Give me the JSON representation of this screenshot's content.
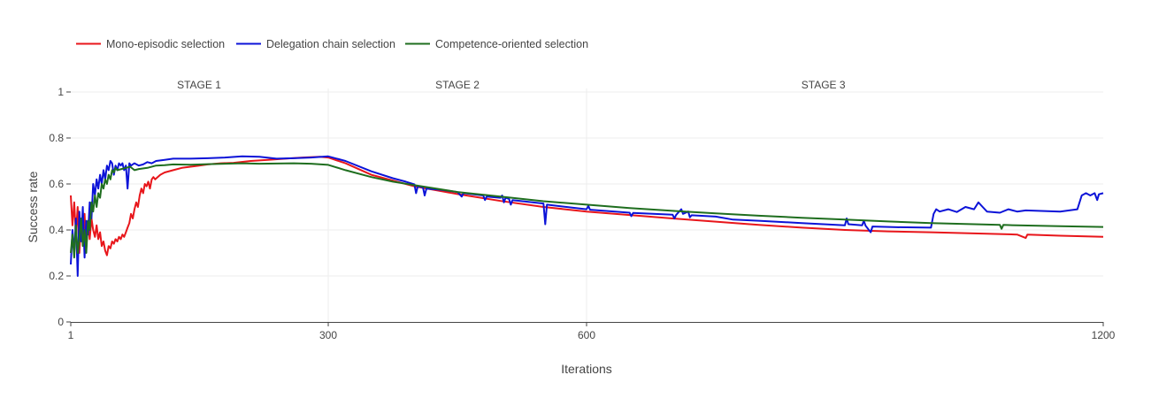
{
  "chart_data": {
    "type": "line",
    "title": "",
    "xlabel": "Iterations",
    "ylabel": "Success rate",
    "xlim": [
      1,
      1200
    ],
    "ylim": [
      0,
      1
    ],
    "x_ticks": [
      1,
      300,
      600,
      1200
    ],
    "y_ticks": [
      0,
      0.2,
      0.4,
      0.6,
      0.8,
      1
    ],
    "y_tick_labels": [
      "0",
      "0.2",
      "0.4",
      "0.6",
      "0.8",
      "1"
    ],
    "x_tick_labels": [
      "1",
      "300",
      "600",
      "1200"
    ],
    "stage_separators": [
      300,
      600
    ],
    "stages": [
      {
        "label": "STAGE 1",
        "x": 150
      },
      {
        "label": "STAGE 2",
        "x": 450
      },
      {
        "label": "STAGE 3",
        "x": 875
      }
    ],
    "grid": true,
    "legend_position": "top-left",
    "series": [
      {
        "name": "Mono-episodic selection",
        "color": "#e8161b",
        "points": [
          [
            1,
            0.55
          ],
          [
            3,
            0.42
          ],
          [
            5,
            0.52
          ],
          [
            7,
            0.38
          ],
          [
            9,
            0.5
          ],
          [
            11,
            0.3
          ],
          [
            13,
            0.44
          ],
          [
            15,
            0.35
          ],
          [
            17,
            0.47
          ],
          [
            19,
            0.32
          ],
          [
            21,
            0.43
          ],
          [
            23,
            0.36
          ],
          [
            25,
            0.45
          ],
          [
            27,
            0.4
          ],
          [
            29,
            0.37
          ],
          [
            31,
            0.42
          ],
          [
            33,
            0.36
          ],
          [
            35,
            0.39
          ],
          [
            37,
            0.33
          ],
          [
            39,
            0.35
          ],
          [
            41,
            0.31
          ],
          [
            43,
            0.29
          ],
          [
            45,
            0.33
          ],
          [
            47,
            0.32
          ],
          [
            49,
            0.35
          ],
          [
            51,
            0.34
          ],
          [
            53,
            0.36
          ],
          [
            55,
            0.35
          ],
          [
            57,
            0.37
          ],
          [
            59,
            0.36
          ],
          [
            61,
            0.38
          ],
          [
            63,
            0.37
          ],
          [
            65,
            0.39
          ],
          [
            67,
            0.41
          ],
          [
            69,
            0.43
          ],
          [
            71,
            0.47
          ],
          [
            73,
            0.45
          ],
          [
            75,
            0.49
          ],
          [
            77,
            0.52
          ],
          [
            79,
            0.5
          ],
          [
            81,
            0.55
          ],
          [
            83,
            0.58
          ],
          [
            85,
            0.56
          ],
          [
            87,
            0.6
          ],
          [
            89,
            0.59
          ],
          [
            91,
            0.61
          ],
          [
            93,
            0.58
          ],
          [
            95,
            0.62
          ],
          [
            97,
            0.63
          ],
          [
            99,
            0.62
          ],
          [
            105,
            0.64
          ],
          [
            110,
            0.65
          ],
          [
            120,
            0.66
          ],
          [
            130,
            0.67
          ],
          [
            140,
            0.675
          ],
          [
            150,
            0.68
          ],
          [
            160,
            0.685
          ],
          [
            175,
            0.69
          ],
          [
            190,
            0.692
          ],
          [
            210,
            0.7
          ],
          [
            230,
            0.705
          ],
          [
            250,
            0.71
          ],
          [
            270,
            0.715
          ],
          [
            290,
            0.718
          ],
          [
            300,
            0.715
          ],
          [
            320,
            0.69
          ],
          [
            350,
            0.64
          ],
          [
            375,
            0.615
          ],
          [
            400,
            0.59
          ],
          [
            450,
            0.556
          ],
          [
            500,
            0.526
          ],
          [
            550,
            0.5
          ],
          [
            600,
            0.48
          ],
          [
            650,
            0.465
          ],
          [
            700,
            0.45
          ],
          [
            750,
            0.436
          ],
          [
            800,
            0.422
          ],
          [
            850,
            0.41
          ],
          [
            900,
            0.4
          ],
          [
            950,
            0.394
          ],
          [
            1000,
            0.39
          ],
          [
            1050,
            0.385
          ],
          [
            1100,
            0.38
          ],
          [
            1110,
            0.365
          ],
          [
            1112,
            0.38
          ],
          [
            1150,
            0.375
          ],
          [
            1200,
            0.37
          ]
        ]
      },
      {
        "name": "Delegation chain selection",
        "color": "#0c13d8",
        "points": [
          [
            1,
            0.25
          ],
          [
            3,
            0.4
          ],
          [
            5,
            0.3
          ],
          [
            7,
            0.45
          ],
          [
            9,
            0.2
          ],
          [
            11,
            0.48
          ],
          [
            13,
            0.35
          ],
          [
            15,
            0.5
          ],
          [
            17,
            0.28
          ],
          [
            19,
            0.44
          ],
          [
            21,
            0.38
          ],
          [
            23,
            0.52
          ],
          [
            25,
            0.45
          ],
          [
            27,
            0.6
          ],
          [
            29,
            0.55
          ],
          [
            31,
            0.62
          ],
          [
            33,
            0.58
          ],
          [
            35,
            0.64
          ],
          [
            37,
            0.6
          ],
          [
            39,
            0.66
          ],
          [
            41,
            0.62
          ],
          [
            43,
            0.68
          ],
          [
            45,
            0.66
          ],
          [
            47,
            0.7
          ],
          [
            49,
            0.69
          ],
          [
            51,
            0.64
          ],
          [
            53,
            0.68
          ],
          [
            55,
            0.66
          ],
          [
            57,
            0.69
          ],
          [
            59,
            0.68
          ],
          [
            61,
            0.69
          ],
          [
            63,
            0.66
          ],
          [
            65,
            0.68
          ],
          [
            67,
            0.58
          ],
          [
            69,
            0.69
          ],
          [
            71,
            0.68
          ],
          [
            75,
            0.69
          ],
          [
            80,
            0.68
          ],
          [
            85,
            0.685
          ],
          [
            90,
            0.695
          ],
          [
            95,
            0.69
          ],
          [
            100,
            0.7
          ],
          [
            110,
            0.705
          ],
          [
            120,
            0.71
          ],
          [
            140,
            0.71
          ],
          [
            160,
            0.712
          ],
          [
            180,
            0.715
          ],
          [
            200,
            0.72
          ],
          [
            220,
            0.718
          ],
          [
            240,
            0.71
          ],
          [
            260,
            0.712
          ],
          [
            280,
            0.715
          ],
          [
            300,
            0.72
          ],
          [
            320,
            0.7
          ],
          [
            350,
            0.655
          ],
          [
            375,
            0.625
          ],
          [
            390,
            0.61
          ],
          [
            400,
            0.598
          ],
          [
            402,
            0.56
          ],
          [
            404,
            0.59
          ],
          [
            410,
            0.585
          ],
          [
            412,
            0.55
          ],
          [
            414,
            0.58
          ],
          [
            430,
            0.575
          ],
          [
            450,
            0.565
          ],
          [
            455,
            0.545
          ],
          [
            457,
            0.56
          ],
          [
            480,
            0.55
          ],
          [
            482,
            0.53
          ],
          [
            484,
            0.545
          ],
          [
            500,
            0.54
          ],
          [
            502,
            0.55
          ],
          [
            504,
            0.52
          ],
          [
            506,
            0.54
          ],
          [
            510,
            0.535
          ],
          [
            512,
            0.51
          ],
          [
            514,
            0.53
          ],
          [
            550,
            0.515
          ],
          [
            552,
            0.425
          ],
          [
            554,
            0.51
          ],
          [
            600,
            0.49
          ],
          [
            602,
            0.505
          ],
          [
            604,
            0.488
          ],
          [
            650,
            0.475
          ],
          [
            652,
            0.46
          ],
          [
            654,
            0.474
          ],
          [
            700,
            0.466
          ],
          [
            702,
            0.45
          ],
          [
            704,
            0.465
          ],
          [
            710,
            0.49
          ],
          [
            712,
            0.47
          ],
          [
            718,
            0.48
          ],
          [
            720,
            0.455
          ],
          [
            722,
            0.464
          ],
          [
            750,
            0.458
          ],
          [
            770,
            0.445
          ],
          [
            800,
            0.44
          ],
          [
            850,
            0.43
          ],
          [
            900,
            0.42
          ],
          [
            902,
            0.45
          ],
          [
            904,
            0.425
          ],
          [
            920,
            0.42
          ],
          [
            922,
            0.44
          ],
          [
            924,
            0.418
          ],
          [
            930,
            0.39
          ],
          [
            932,
            0.415
          ],
          [
            960,
            0.412
          ],
          [
            1000,
            0.41
          ],
          [
            1003,
            0.47
          ],
          [
            1006,
            0.49
          ],
          [
            1010,
            0.48
          ],
          [
            1020,
            0.49
          ],
          [
            1030,
            0.478
          ],
          [
            1040,
            0.5
          ],
          [
            1050,
            0.49
          ],
          [
            1055,
            0.52
          ],
          [
            1060,
            0.5
          ],
          [
            1065,
            0.48
          ],
          [
            1080,
            0.475
          ],
          [
            1090,
            0.49
          ],
          [
            1100,
            0.48
          ],
          [
            1110,
            0.485
          ],
          [
            1150,
            0.48
          ],
          [
            1170,
            0.49
          ],
          [
            1175,
            0.55
          ],
          [
            1180,
            0.56
          ],
          [
            1185,
            0.55
          ],
          [
            1190,
            0.56
          ],
          [
            1193,
            0.53
          ],
          [
            1195,
            0.555
          ],
          [
            1200,
            0.56
          ]
        ]
      },
      {
        "name": "Competence-oriented selection",
        "color": "#1f6e1f",
        "points": [
          [
            1,
            0.3
          ],
          [
            3,
            0.38
          ],
          [
            5,
            0.28
          ],
          [
            7,
            0.42
          ],
          [
            9,
            0.3
          ],
          [
            11,
            0.36
          ],
          [
            13,
            0.45
          ],
          [
            15,
            0.33
          ],
          [
            17,
            0.4
          ],
          [
            19,
            0.3
          ],
          [
            21,
            0.44
          ],
          [
            23,
            0.4
          ],
          [
            25,
            0.52
          ],
          [
            27,
            0.48
          ],
          [
            29,
            0.55
          ],
          [
            31,
            0.5
          ],
          [
            33,
            0.56
          ],
          [
            35,
            0.54
          ],
          [
            37,
            0.6
          ],
          [
            39,
            0.58
          ],
          [
            41,
            0.62
          ],
          [
            43,
            0.6
          ],
          [
            45,
            0.64
          ],
          [
            47,
            0.62
          ],
          [
            49,
            0.66
          ],
          [
            51,
            0.65
          ],
          [
            53,
            0.67
          ],
          [
            55,
            0.66
          ],
          [
            60,
            0.665
          ],
          [
            65,
            0.67
          ],
          [
            70,
            0.675
          ],
          [
            75,
            0.66
          ],
          [
            80,
            0.665
          ],
          [
            90,
            0.67
          ],
          [
            100,
            0.68
          ],
          [
            110,
            0.682
          ],
          [
            120,
            0.685
          ],
          [
            140,
            0.684
          ],
          [
            160,
            0.686
          ],
          [
            180,
            0.688
          ],
          [
            200,
            0.69
          ],
          [
            220,
            0.688
          ],
          [
            240,
            0.689
          ],
          [
            260,
            0.69
          ],
          [
            280,
            0.688
          ],
          [
            300,
            0.683
          ],
          [
            320,
            0.66
          ],
          [
            350,
            0.63
          ],
          [
            375,
            0.61
          ],
          [
            400,
            0.595
          ],
          [
            450,
            0.565
          ],
          [
            500,
            0.545
          ],
          [
            550,
            0.525
          ],
          [
            600,
            0.51
          ],
          [
            650,
            0.495
          ],
          [
            700,
            0.483
          ],
          [
            750,
            0.472
          ],
          [
            800,
            0.462
          ],
          [
            850,
            0.453
          ],
          [
            900,
            0.445
          ],
          [
            950,
            0.437
          ],
          [
            1000,
            0.43
          ],
          [
            1050,
            0.425
          ],
          [
            1080,
            0.422
          ],
          [
            1082,
            0.405
          ],
          [
            1084,
            0.422
          ],
          [
            1100,
            0.42
          ],
          [
            1150,
            0.416
          ],
          [
            1200,
            0.413
          ]
        ]
      }
    ]
  }
}
